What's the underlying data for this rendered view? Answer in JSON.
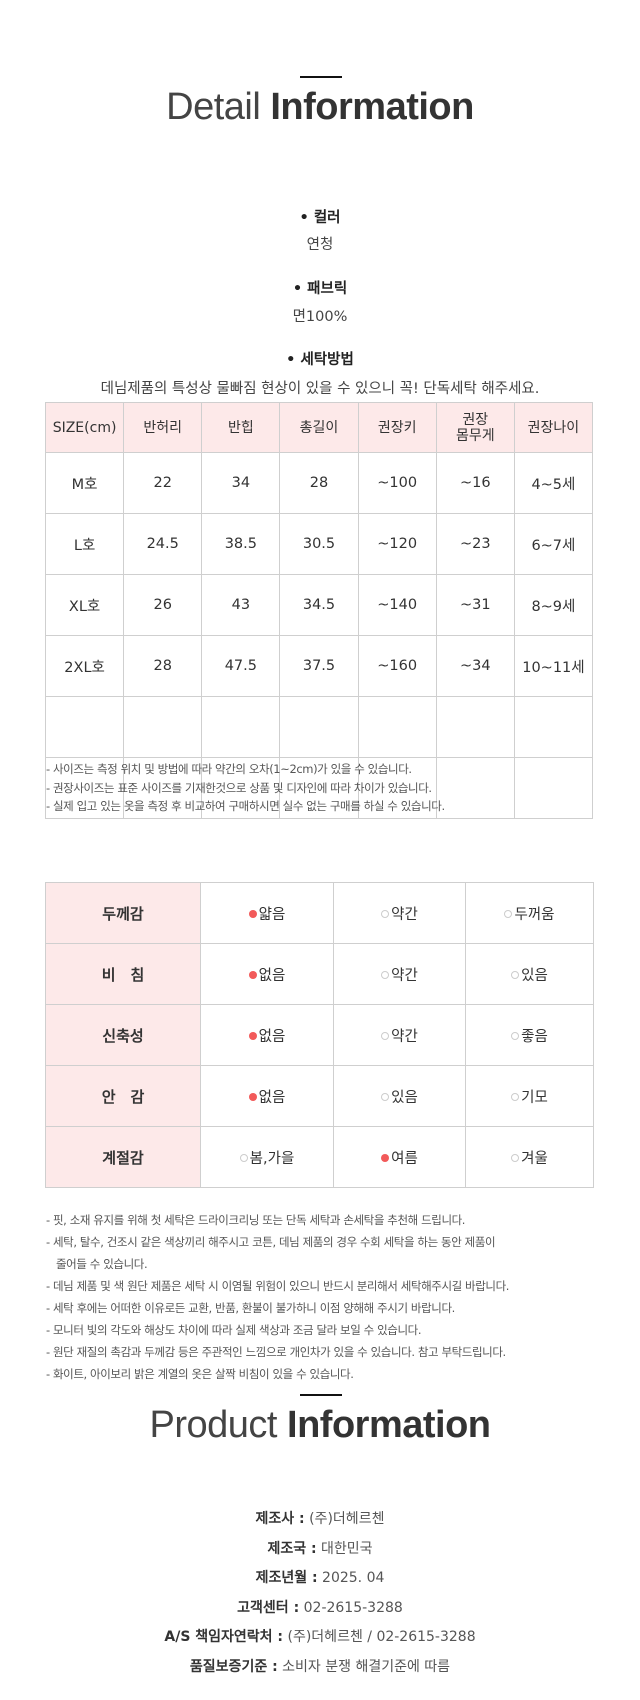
{
  "detail": {
    "title_light": "Detail",
    "title_bold": "Information",
    "items": [
      {
        "label": "• 컬러",
        "value": "연청"
      },
      {
        "label": "• 패브릭",
        "value": "면100%"
      },
      {
        "label": "• 세탁방법",
        "value": "데님제품의 특성상 물빠짐 현상이 있을 수 있으니 꼭! 단독세탁 해주세요."
      }
    ]
  },
  "size_table": {
    "headers": [
      "SIZE(cm)",
      "반허리",
      "반힙",
      "총길이",
      "권장키",
      "권장\n몸무게",
      "권장나이"
    ],
    "rows": [
      [
        "M호",
        "22",
        "34",
        "28",
        "~100",
        "~16",
        "4~5세"
      ],
      [
        "L호",
        "24.5",
        "38.5",
        "30.5",
        "~120",
        "~23",
        "6~7세"
      ],
      [
        "XL호",
        "26",
        "43",
        "34.5",
        "~140",
        "~31",
        "8~9세"
      ],
      [
        "2XL호",
        "28",
        "47.5",
        "37.5",
        "~160",
        "~34",
        "10~11세"
      ],
      [
        "",
        "",
        "",
        "",
        "",
        "",
        ""
      ],
      [
        "",
        "",
        "",
        "",
        "",
        "",
        ""
      ]
    ],
    "notes": [
      "- 사이즈는 측정 위치 및 방법에 따라 약간의 오차(1~2cm)가 있을 수 있습니다.",
      "- 권장사이즈는 표준 사이즈를 기재한것으로 상품 및 디자인에 따라 차이가 있습니다.",
      "- 실제 입고 있는 옷을 측정 후 비교하여 구매하시면 실수 없는 구매를 하실 수 있습니다."
    ]
  },
  "fabric_table": {
    "selected_color": "#f25a5a",
    "rows": [
      {
        "label": "두께감",
        "options": [
          "얇음",
          "약간",
          "두꺼움"
        ],
        "selected": 0
      },
      {
        "label": "비　침",
        "options": [
          "없음",
          "약간",
          "있음"
        ],
        "selected": 0
      },
      {
        "label": "신축성",
        "options": [
          "없음",
          "약간",
          "좋음"
        ],
        "selected": 0
      },
      {
        "label": "안　감",
        "options": [
          "없음",
          "있음",
          "기모"
        ],
        "selected": 0
      },
      {
        "label": "계절감",
        "options": [
          "봄,가을",
          "여름",
          "겨울"
        ],
        "selected": 1
      }
    ],
    "notes": [
      "- 핏, 소재 유지를 위해 첫 세탁은 드라이크리닝 또는 단독 세탁과 손세탁을 추천해 드립니다.",
      "- 세탁, 탈수, 건조시 같은 색상끼리 해주시고 코튼, 데님 제품의 경우 수회 세탁을 하는 동안 제품이",
      "줄어들 수 있습니다.",
      "- 데님 제품 및 색 원단 제품은 세탁 시 이염될 위험이 있으니 반드시 분리해서 세탁해주시길 바랍니다.",
      "- 세탁 후에는 어떠한 이유로든 교환, 반품, 환불이 불가하니 이점 양해해 주시기 바랍니다.",
      "- 모니터 빛의 각도와 해상도 차이에 따라 실제 색상과 조금 달라 보일 수 있습니다.",
      "- 원단 재질의 촉감과 두께감 등은 주관적인 느낌으로 개인차가 있을 수 있습니다. 참고 부탁드립니다.",
      "- 화이트, 아이보리 밝은 계열의 옷은 살짝 비침이 있을 수 있습니다."
    ]
  },
  "product": {
    "title_light": "Product",
    "title_bold": "Information",
    "rows": [
      {
        "label": "제조사 :",
        "value": "(주)더헤르첸"
      },
      {
        "label": "제조국 :",
        "value": "대한민국"
      },
      {
        "label": "제조년월 :",
        "value": "2025. 04"
      },
      {
        "label": "고객센터 :",
        "value": "02-2615-3288"
      },
      {
        "label": "A/S 책임자연락처 :",
        "value": "(주)더헤르첸 / 02-2615-3288"
      },
      {
        "label": "품질보증기준 :",
        "value": "소비자 분쟁 해결기준에 따름"
      }
    ]
  }
}
